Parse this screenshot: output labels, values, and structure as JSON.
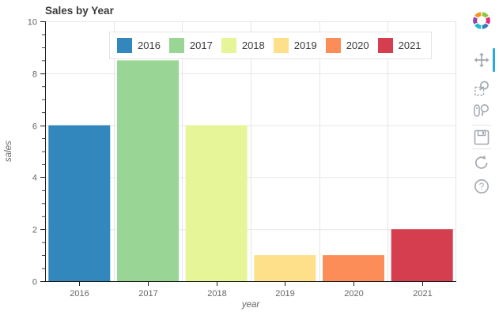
{
  "page": {
    "title": "Sales by Year"
  },
  "chart_data": {
    "type": "bar",
    "title": "Sales by Year",
    "categories": [
      "2016",
      "2017",
      "2018",
      "2019",
      "2020",
      "2021"
    ],
    "values": [
      6,
      8.5,
      6,
      1,
      1,
      2
    ],
    "bar_colors": [
      "#3288bd",
      "#99d594",
      "#e6f598",
      "#fee08b",
      "#fc8d59",
      "#d53e4f"
    ],
    "xlabel": "year",
    "ylabel": "sales",
    "ylim": [
      0,
      10
    ],
    "yticks": [
      0,
      2,
      4,
      6,
      8,
      10
    ],
    "ytick_labels": [
      "0",
      "2",
      "4",
      "6",
      "8",
      "10"
    ],
    "minor_tick_step": 0.5,
    "grid": "on",
    "legend": {
      "position": "top-center",
      "entries": [
        "2016",
        "2017",
        "2018",
        "2019",
        "2020",
        "2021"
      ]
    }
  },
  "toolbar": {
    "logo": "bokeh-logo",
    "active_color": "#26aae1",
    "tools": [
      {
        "name": "pan-tool",
        "icon": "move-icon",
        "active": true
      },
      {
        "name": "box-zoom-tool",
        "icon": "box-zoom-icon",
        "active": false
      },
      {
        "name": "wheel-zoom-tool",
        "icon": "wheel-zoom-icon",
        "active": false
      },
      {
        "name": "save-tool",
        "icon": "save-icon",
        "active": false
      },
      {
        "name": "reset-tool",
        "icon": "reset-icon",
        "active": false
      },
      {
        "name": "help-tool",
        "icon": "help-icon",
        "active": false
      }
    ]
  },
  "colors": {
    "grid_line": "#e6e6e6",
    "outline": "#e5e5e5",
    "axis_line": "#1a1a1a",
    "tick_text": "#666666",
    "title_text": "#3b3b3b",
    "icon_gray": "#a3a9b0"
  }
}
